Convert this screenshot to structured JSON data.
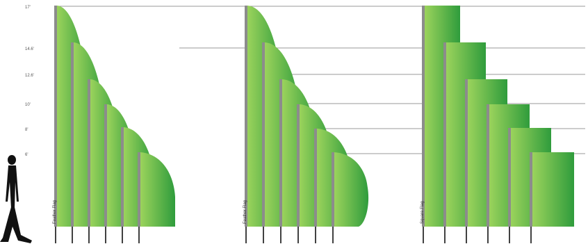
{
  "height_marks": [
    "17'",
    "14.6'",
    "12.6'",
    "10'",
    "8'",
    "6'"
  ],
  "flag_groups": [
    {
      "label": "Feather Flag",
      "shape": "feather",
      "flag_count": 6
    },
    {
      "label": "Feather Flag",
      "shape": "teardrop",
      "flag_count": 6
    },
    {
      "label": "Square Flag",
      "shape": "square",
      "flag_count": 6
    }
  ],
  "colors": {
    "flag_light": "#9bd35c",
    "flag_dark": "#2f9c3c",
    "pole_gray": "#8c8c8c",
    "pole_base": "#111111",
    "grid_line": "#9a9a9a",
    "person": "#111111"
  },
  "icons": {
    "person": "person-silhouette-icon"
  }
}
